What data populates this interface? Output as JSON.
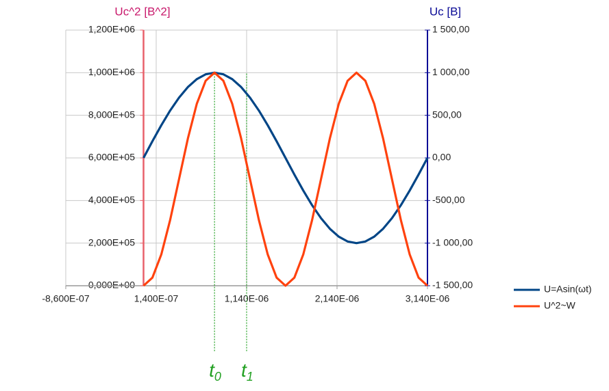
{
  "chart_data": {
    "type": "line",
    "y_title": "Uc^2 [B^2]",
    "y2_title": "Uc [B]",
    "x": [
      0,
      9.8125e-08,
      1.9625e-07,
      2.94375e-07,
      3.925e-07,
      4.90625e-07,
      5.8875e-07,
      6.86875e-07,
      7.85e-07,
      8.83125e-07,
      9.8125e-07,
      1.079375e-06,
      1.1775e-06,
      1.275625e-06,
      1.37375e-06,
      1.471875e-06,
      1.57e-06,
      1.668125e-06,
      1.76625e-06,
      1.864375e-06,
      1.9625e-06,
      2.060625e-06,
      2.15875e-06,
      2.256875e-06,
      2.355e-06,
      2.453125e-06,
      2.55125e-06,
      2.649375e-06,
      2.7475e-06,
      2.845625e-06,
      2.94375e-06,
      3.041875e-06,
      3.14e-06
    ],
    "series": [
      {
        "name": "U=Asin(ωt)",
        "color": "#004586",
        "axis": "y2",
        "values": [
          0,
          195.1,
          382.7,
          555.6,
          707.1,
          831.5,
          923.9,
          980.8,
          1000,
          980.8,
          923.9,
          831.5,
          707.1,
          555.6,
          382.7,
          195.1,
          0,
          -195.1,
          -382.7,
          -555.6,
          -707.1,
          -831.5,
          -923.9,
          -980.8,
          -1000,
          -980.8,
          -923.9,
          -831.5,
          -707.1,
          -555.6,
          -382.7,
          -195.1,
          0
        ]
      },
      {
        "name": "U^2~W",
        "color": "#ff420e",
        "axis": "y",
        "values": [
          0,
          38060,
          146447,
          308658,
          500000,
          691342,
          853553,
          961940,
          1000000,
          961940,
          853553,
          691342,
          500000,
          308658,
          146447,
          38060,
          0,
          38060,
          146447,
          308658,
          500000,
          691342,
          853553,
          961940,
          1000000,
          961940,
          853553,
          691342,
          500000,
          308658,
          146447,
          38060,
          0
        ]
      }
    ],
    "xlim": [
      -8.6e-07,
      3.14e-06
    ],
    "xticks": [
      {
        "value": -8.6e-07,
        "label": "-8,600E-07"
      },
      {
        "value": 1.4e-07,
        "label": "1,400E-07"
      },
      {
        "value": 1.14e-06,
        "label": "1,140E-06"
      },
      {
        "value": 2.14e-06,
        "label": "2,140E-06"
      },
      {
        "value": 3.14e-06,
        "label": "3,140E-06"
      }
    ],
    "ylim": [
      0,
      1200000
    ],
    "yticks": [
      {
        "value": 0,
        "label": "0,000E+00"
      },
      {
        "value": 200000,
        "label": "2,000E+05"
      },
      {
        "value": 400000,
        "label": "4,000E+05"
      },
      {
        "value": 600000,
        "label": "6,000E+05"
      },
      {
        "value": 800000,
        "label": "8,000E+05"
      },
      {
        "value": 1000000,
        "label": "1,000E+06"
      },
      {
        "value": 1200000,
        "label": "1,200E+06"
      }
    ],
    "y2lim": [
      -1500,
      1500
    ],
    "y2ticks": [
      {
        "value": -1500,
        "label": "-1 500,00"
      },
      {
        "value": -1000,
        "label": "-1 000,00"
      },
      {
        "value": -500,
        "label": "-500,00"
      },
      {
        "value": 0,
        "label": "0,00"
      },
      {
        "value": 500,
        "label": "500,00"
      },
      {
        "value": 1000,
        "label": "1 000,00"
      },
      {
        "value": 1500,
        "label": "1 500,00"
      }
    ],
    "grid": true,
    "legend": "right",
    "annotations": [
      {
        "x": 7.85e-07,
        "text": "t",
        "subscript": "0",
        "color": "#22a022"
      },
      {
        "x": 1.14e-06,
        "text": "t",
        "subscript": "1",
        "color": "#22a022"
      }
    ]
  }
}
